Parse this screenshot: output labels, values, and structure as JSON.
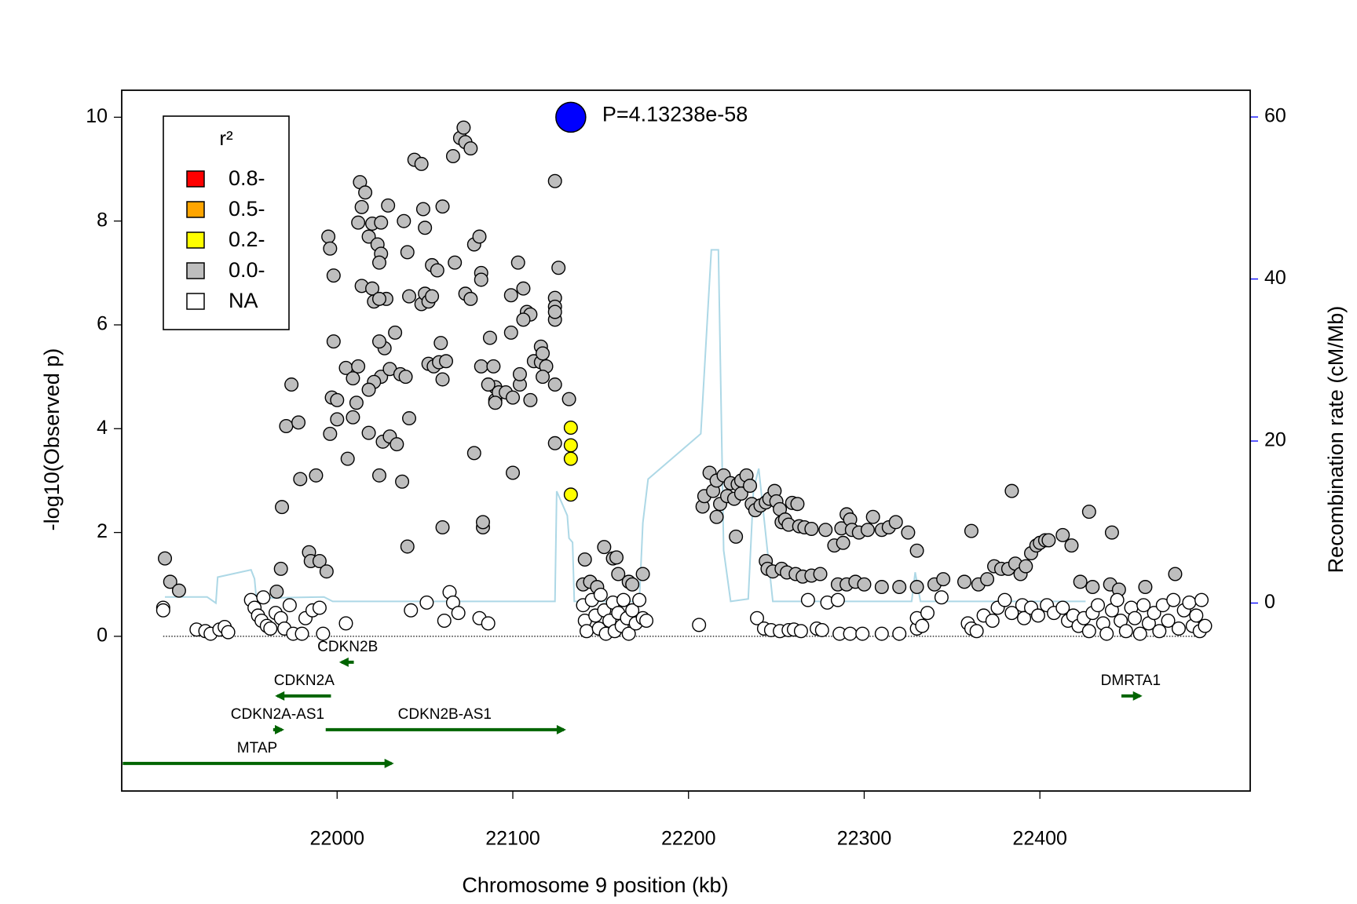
{
  "chart_data": {
    "type": "scatter",
    "x_label": "Chromosome 9 position (kb)",
    "y_label": "-log10(Observed p)",
    "y2_label": "Recombination rate (cM/Mb)",
    "xlim": [
      21877.4,
      22519.7
    ],
    "ylim": [
      -2.98,
      10.52
    ],
    "y2lim": [
      -23.2,
      63.3
    ],
    "xticks": [
      22000,
      22100,
      22200,
      22300,
      22400
    ],
    "yticks": [
      0,
      2,
      4,
      6,
      8,
      10
    ],
    "y2ticks": [
      0,
      20,
      40,
      60
    ],
    "y2_color": "#0000ff",
    "legend": "upper left",
    "legend_title": "r²",
    "lead_snp": {
      "x": 22133,
      "y": 10,
      "label": "P=4.13238e-58",
      "color": "#0000ff"
    },
    "series": [
      {
        "name": "0.8-",
        "color": "#ff0000",
        "x": [],
        "values": []
      },
      {
        "name": "0.5-",
        "color": "#ffa500",
        "x": [],
        "values": []
      },
      {
        "name": "0.2-",
        "color": "#ffff00",
        "x": [
          22133,
          22133,
          22133,
          22133
        ],
        "values": [
          4.02,
          3.68,
          3.42,
          2.73
        ]
      },
      {
        "name": "0.0-",
        "color": "#bebebe",
        "x": [
          21902,
          21905,
          21910,
          21965.6,
          21968,
          21968.6,
          21974,
          21971,
          21978,
          21979,
          21988,
          21984,
          21985,
          21990,
          21994,
          21995,
          21996,
          21998,
          21998,
          21997,
          22000,
          21996,
          22000,
          22006,
          22005,
          22012,
          22011,
          22009,
          22009,
          22013,
          22016,
          22012,
          22014,
          22014,
          22020,
          22021,
          22018,
          22020,
          22025,
          22023,
          22025,
          22024,
          22029,
          22028,
          22024,
          22027,
          22024,
          22025,
          22021,
          22018,
          22018,
          22026,
          22030,
          22034,
          22024,
          22033,
          22030,
          22036,
          22037,
          22039,
          22040,
          22041,
          22041,
          22040,
          22038,
          22044,
          22048,
          22049,
          22048,
          22050,
          22052,
          22054,
          22050,
          22054,
          22057,
          22060,
          22052,
          22055,
          22058,
          22059,
          22060,
          22062,
          22060,
          22066,
          22070,
          22072,
          22073,
          22076,
          22067,
          22073,
          22076,
          22078,
          22081,
          22082,
          22082,
          22082,
          22087,
          22089,
          22090,
          22086,
          22090,
          22092,
          22078,
          22083,
          22083,
          22090,
          22096,
          22099,
          22099,
          22100,
          22100,
          22103,
          22104,
          22104,
          22106,
          22108,
          22110,
          22106,
          22110,
          22112,
          22116,
          22116,
          22117,
          22119,
          22117,
          22124,
          22124,
          22124,
          22126,
          22124,
          22124,
          22124,
          22124,
          22132,
          22141,
          22140,
          22144,
          22148,
          22152,
          22157,
          22159,
          22160,
          22166,
          22168,
          22174,
          22208,
          22209,
          22212,
          22214,
          22216,
          22216,
          22218,
          22220,
          22222,
          22224,
          22226,
          22228,
          22230,
          22230,
          22233,
          22235,
          22236,
          22238,
          22241,
          22244,
          22246,
          22249,
          22250,
          22252,
          22253,
          22255,
          22257,
          22259,
          22262,
          22263,
          22266,
          22270,
          22227,
          22244,
          22245,
          22248,
          22253,
          22256,
          22261,
          22265,
          22270,
          22275,
          22278,
          22283,
          22287,
          22288,
          22290,
          22292,
          22293,
          22297,
          22302,
          22305,
          22310,
          22314,
          22318,
          22325,
          22330,
          22285,
          22290,
          22295,
          22300,
          22310,
          22320,
          22330,
          22340,
          22345,
          22357,
          22361,
          22365,
          22370,
          22374,
          22378,
          22382,
          22384,
          22386,
          22389,
          22392,
          22395,
          22398,
          22400,
          22403,
          22405,
          22413,
          22418,
          22423,
          22428,
          22430,
          22440,
          22441,
          22445,
          22460,
          22477
        ],
        "values": [
          1.5,
          1.05,
          0.88,
          0.86,
          1.3,
          2.49,
          4.85,
          4.05,
          4.12,
          3.03,
          3.1,
          1.62,
          1.45,
          1.45,
          1.25,
          7.7,
          7.47,
          6.95,
          5.68,
          4.6,
          4.55,
          3.9,
          4.18,
          3.42,
          5.17,
          5.2,
          4.5,
          4.22,
          4.97,
          8.75,
          8.55,
          7.97,
          8.27,
          6.75,
          6.7,
          6.45,
          7.7,
          7.95,
          7.97,
          7.55,
          7.37,
          7.2,
          8.3,
          6.5,
          6.5,
          5.55,
          5.68,
          5.0,
          4.9,
          4.75,
          3.92,
          3.75,
          3.85,
          3.7,
          3.1,
          5.85,
          5.15,
          5.05,
          2.98,
          5.0,
          1.73,
          4.2,
          6.55,
          7.4,
          8.0,
          9.18,
          9.1,
          8.23,
          6.4,
          6.6,
          6.45,
          6.55,
          7.87,
          7.15,
          7.05,
          8.28,
          5.25,
          5.2,
          5.28,
          5.65,
          4.95,
          5.3,
          2.1,
          9.25,
          9.6,
          9.8,
          9.52,
          9.4,
          7.2,
          6.6,
          6.5,
          7.55,
          7.7,
          7.0,
          6.87,
          5.2,
          5.75,
          5.2,
          4.8,
          4.85,
          4.55,
          4.7,
          3.53,
          2.1,
          2.2,
          4.5,
          4.7,
          5.85,
          6.57,
          4.6,
          3.15,
          7.2,
          4.85,
          5.05,
          6.7,
          6.25,
          6.2,
          6.1,
          4.55,
          5.3,
          5.28,
          5.58,
          5.45,
          5.2,
          5.0,
          8.77,
          4.85,
          3.72,
          7.1,
          6.52,
          6.35,
          6.1,
          6.25,
          4.57,
          1.48,
          1.0,
          1.05,
          0.95,
          1.72,
          1.5,
          1.52,
          1.2,
          1.05,
          1.0,
          1.2,
          2.5,
          2.7,
          3.15,
          2.8,
          3.0,
          2.3,
          2.55,
          3.1,
          2.7,
          2.95,
          2.65,
          2.93,
          3.0,
          2.75,
          3.1,
          2.9,
          2.55,
          2.43,
          2.52,
          2.58,
          2.65,
          2.8,
          2.6,
          2.45,
          2.2,
          2.25,
          2.15,
          2.57,
          2.55,
          2.12,
          2.1,
          2.07,
          1.92,
          1.45,
          1.3,
          1.25,
          1.3,
          1.23,
          1.2,
          1.15,
          1.17,
          1.2,
          2.05,
          1.75,
          2.08,
          1.8,
          2.35,
          2.25,
          2.05,
          2.0,
          2.05,
          2.3,
          2.05,
          2.1,
          2.2,
          2.0,
          1.65,
          1.0,
          1.0,
          1.05,
          1.0,
          0.95,
          0.95,
          0.95,
          1.0,
          1.1,
          1.05,
          2.03,
          1.0,
          1.1,
          1.35,
          1.3,
          1.3,
          2.8,
          1.4,
          1.2,
          1.35,
          1.6,
          1.75,
          1.8,
          1.85,
          1.85,
          1.95,
          1.75,
          1.05,
          2.4,
          0.95,
          1.0,
          2.0,
          0.9,
          0.95,
          1.2
        ]
      },
      {
        "name": "NA",
        "color": "#ffffff",
        "x": [
          21901,
          21901,
          21920,
          21925,
          21928,
          21933,
          21936,
          21938,
          21951,
          21953,
          21955,
          21957,
          21958,
          21960,
          21962,
          21965,
          21968,
          21970,
          21973,
          21975,
          21980,
          21982,
          21986,
          21990,
          21992,
          22005,
          22042,
          22051,
          22061,
          22064,
          22066,
          22069,
          22081,
          22086,
          22140,
          22141,
          22142,
          22145,
          22147,
          22149,
          22150,
          22152,
          22153,
          22155,
          22157,
          22158,
          22160,
          22162,
          22163,
          22165,
          22166,
          22168,
          22170,
          22172,
          22174,
          22176,
          22206,
          22239,
          22243,
          22247,
          22252,
          22257,
          22260,
          22264,
          22273,
          22276,
          22268,
          22279,
          22285,
          22286,
          22292,
          22299,
          22310,
          22320,
          22330,
          22330,
          22333,
          22336,
          22344,
          22359,
          22361,
          22364,
          22368,
          22373,
          22376,
          22380,
          22384,
          22390,
          22391,
          22395,
          22399,
          22404,
          22408,
          22413,
          22416,
          22419,
          22422,
          22425,
          22428,
          22430,
          22433,
          22436,
          22438,
          22441,
          22444,
          22446,
          22449,
          22452,
          22454,
          22457,
          22459,
          22462,
          22465,
          22468,
          22470,
          22473,
          22476,
          22479,
          22482,
          22485,
          22487,
          22489,
          22491,
          22492,
          22494
        ],
        "values": [
          0.55,
          0.5,
          0.13,
          0.1,
          0.05,
          0.13,
          0.18,
          0.08,
          0.7,
          0.55,
          0.4,
          0.3,
          0.75,
          0.2,
          0.15,
          0.45,
          0.35,
          0.15,
          0.6,
          0.05,
          0.05,
          0.35,
          0.5,
          0.55,
          0.05,
          0.25,
          0.5,
          0.65,
          0.3,
          0.85,
          0.65,
          0.45,
          0.35,
          0.25,
          0.6,
          0.3,
          0.1,
          0.7,
          0.4,
          0.15,
          0.8,
          0.5,
          0.05,
          0.3,
          0.65,
          0.1,
          0.45,
          0.2,
          0.7,
          0.35,
          0.05,
          0.5,
          0.25,
          0.7,
          0.35,
          0.3,
          0.22,
          0.35,
          0.15,
          0.12,
          0.1,
          0.12,
          0.13,
          0.1,
          0.15,
          0.12,
          0.7,
          0.65,
          0.7,
          0.05,
          0.05,
          0.05,
          0.05,
          0.05,
          0.15,
          0.35,
          0.2,
          0.45,
          0.75,
          0.25,
          0.15,
          0.1,
          0.4,
          0.3,
          0.55,
          0.7,
          0.45,
          0.6,
          0.35,
          0.55,
          0.4,
          0.6,
          0.45,
          0.55,
          0.3,
          0.4,
          0.2,
          0.35,
          0.1,
          0.45,
          0.6,
          0.25,
          0.05,
          0.5,
          0.7,
          0.3,
          0.1,
          0.55,
          0.35,
          0.05,
          0.6,
          0.25,
          0.45,
          0.1,
          0.6,
          0.3,
          0.7,
          0.15,
          0.5,
          0.65,
          0.2,
          0.4,
          0.1,
          0.7,
          0.2
        ]
      }
    ],
    "recombination": {
      "color": "#add8e6",
      "axis": "y2",
      "x": [
        21902,
        21926,
        21931,
        21932,
        21951,
        21953,
        21954,
        21992.5,
        21997.5,
        22124,
        22125,
        22131,
        22132,
        22134,
        22135,
        22172,
        22174,
        22177,
        22207,
        22213,
        22217,
        22220,
        22224,
        22234,
        22237,
        22240,
        22248,
        22327,
        22329,
        22332,
        22426
      ],
      "values": [
        0.75,
        0.75,
        0,
        3.2,
        4.1,
        3,
        0.6,
        0.75,
        0.2,
        0.2,
        13.8,
        10.8,
        8,
        7.5,
        0.2,
        0.2,
        9.9,
        15.3,
        20.9,
        43.6,
        43.6,
        6.5,
        0.2,
        0.5,
        14,
        16.6,
        0.2,
        0.2,
        3.8,
        0.2,
        0.2
      ]
    },
    "gene_color": "#006400",
    "genes": [
      {
        "name": "CDKN2B",
        "start": 22002.5,
        "end": 22009.5,
        "strand": "-"
      },
      {
        "name": "CDKN2A",
        "start": 21966,
        "end": 21996.5,
        "strand": "-"
      },
      {
        "name": "CDKN2A-AS1",
        "start": 21963.6,
        "end": 21968.6,
        "strand": "+"
      },
      {
        "name": "CDKN2B-AS1",
        "start": 21993.5,
        "end": 22129,
        "strand": "+"
      },
      {
        "name": "MTAP",
        "start": 21878,
        "end": 22031,
        "strand": "+"
      },
      {
        "name": "DMRTA1",
        "start": 22446.4,
        "end": 22457,
        "strand": "+"
      }
    ]
  }
}
